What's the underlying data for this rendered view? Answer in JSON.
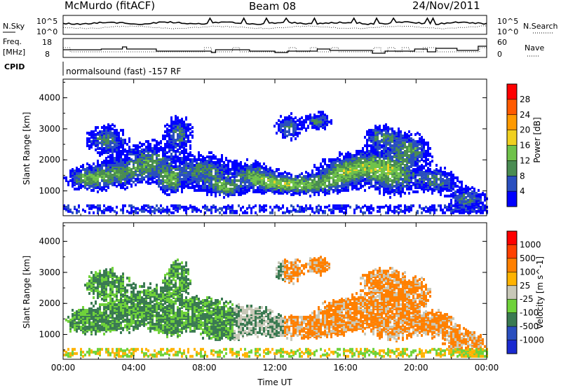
{
  "header": {
    "station": "McMurdo (fitACF)",
    "beam": "Beam 08",
    "date": "24/Nov/2011"
  },
  "noise_panel": {
    "left_label": "N.Sky",
    "right_label": "N.Search",
    "left_ticks": [
      "10^5",
      "10^0"
    ],
    "right_ticks": [
      "10^5",
      "10^0"
    ]
  },
  "freq_panel": {
    "left_label_1": "Freq.",
    "left_label_2": "[MHz]",
    "right_label": "Nave",
    "left_ticks": [
      "18",
      "8"
    ],
    "right_ticks": [
      "60",
      "0"
    ]
  },
  "cpid": {
    "label": "CPID",
    "text": "normalsound (fast) -157 RF"
  },
  "colors": {
    "power": [
      "#0000ff",
      "#2a4fbf",
      "#4a8c52",
      "#6fc24a",
      "#f0d020",
      "#ff9a00",
      "#ff5a00",
      "#ff0000"
    ],
    "velocity": [
      "#ff0000",
      "#ff4000",
      "#ff8000",
      "#ffb300",
      "#c8c8b8",
      "#6fd23a",
      "#3a7a52",
      "#2a4fbf",
      "#1a2ad0"
    ]
  },
  "chart_data": [
    {
      "type": "heatmap",
      "title": "",
      "xlabel": "",
      "ylabel": "Slant Range [km]",
      "ylim": [
        200,
        4600
      ],
      "xlim": [
        "00:00",
        "24:00"
      ],
      "yticks": [
        "1000",
        "2000",
        "3000",
        "4000"
      ],
      "xticks": [
        "00:00",
        "04:00",
        "08:00",
        "12:00",
        "16:00",
        "20:00",
        "00:00"
      ],
      "colorbar": {
        "label": "Power [dB]",
        "ticks": [
          "4",
          "8",
          "12",
          "16",
          "20",
          "24",
          "28"
        ],
        "range": [
          0,
          32
        ]
      }
    },
    {
      "type": "heatmap",
      "title": "",
      "xlabel": "Time UT",
      "ylabel": "Slant Range [km]",
      "ylim": [
        200,
        4600
      ],
      "xlim": [
        "00:00",
        "24:00"
      ],
      "yticks": [
        "1000",
        "2000",
        "3000",
        "4000"
      ],
      "xticks": [
        "00:00",
        "04:00",
        "08:00",
        "12:00",
        "16:00",
        "20:00",
        "00:00"
      ],
      "colorbar": {
        "label": "Velocity [m s^-1]",
        "ticks": [
          "1000",
          "500",
          "100",
          "25",
          "-25",
          "-100",
          "-500",
          "-1000"
        ]
      }
    }
  ]
}
